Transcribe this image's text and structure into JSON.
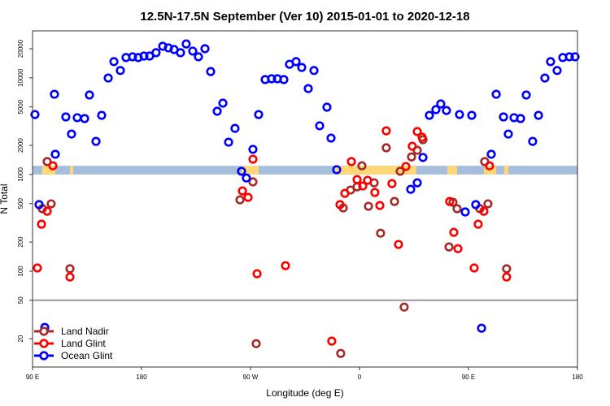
{
  "chart_data": {
    "type": "scatter",
    "title": "12.5N-17.5N September (Ver 10)   2015-01-01 to 2020-12-18",
    "xlabel": "Longitude (deg E)",
    "ylabel": "N Total",
    "xlim": [
      90,
      540
    ],
    "ylim": [
      10.2,
      30600
    ],
    "yscale": "log",
    "x_note": "longitude unwrapped in degrees east starting at 90E",
    "xticks": [
      {
        "value": 90,
        "label": "90 E"
      },
      {
        "value": 180,
        "label": "180"
      },
      {
        "value": 270,
        "label": "90 W"
      },
      {
        "value": 360,
        "label": "0"
      },
      {
        "value": 450,
        "label": "90 E"
      },
      {
        "value": 540,
        "label": "180"
      }
    ],
    "yticks": [
      {
        "value": 20,
        "label": "20"
      },
      {
        "value": 50,
        "label": "50"
      },
      {
        "value": 100,
        "label": "100"
      },
      {
        "value": 200,
        "label": "200"
      },
      {
        "value": 500,
        "label": "500"
      },
      {
        "value": 1000,
        "label": "1000"
      },
      {
        "value": 2000,
        "label": "2000"
      },
      {
        "value": 5000,
        "label": "5000"
      },
      {
        "value": 10000,
        "label": "10000"
      },
      {
        "value": 20000,
        "label": "20000"
      }
    ],
    "reference_line": 50,
    "land_mask_band": {
      "y_range": [
        1000,
        1230
      ],
      "ocean_color": "#a6bddb",
      "land_color": "#fed876",
      "land_segments_lon": [
        [
          98,
          108.8
        ],
        [
          121,
          123.6
        ],
        [
          262.6,
          276.7
        ],
        [
          339.8,
          407
        ],
        [
          432.5,
          440.6
        ],
        [
          462.7,
          472.8
        ],
        [
          479.5,
          482.9
        ]
      ]
    },
    "legend": {
      "placement": "bottom-left"
    },
    "series": [
      {
        "name": "Land Nadir",
        "color": "#a52a2a",
        "points": [
          [
            98.1,
            443
          ],
          [
            102.1,
            1360
          ],
          [
            105.4,
            497
          ],
          [
            120.9,
            106
          ],
          [
            261.3,
            547
          ],
          [
            272.0,
            838
          ],
          [
            274.7,
            17.8
          ],
          [
            344.5,
            14.1
          ],
          [
            346.6,
            451
          ],
          [
            352.6,
            690
          ],
          [
            358.0,
            745
          ],
          [
            362.0,
            1230
          ],
          [
            367.4,
            469
          ],
          [
            372.1,
            820
          ],
          [
            377.4,
            247
          ],
          [
            382.1,
            1890
          ],
          [
            388.9,
            526
          ],
          [
            393.6,
            1080
          ],
          [
            396.9,
            42.5
          ],
          [
            403.0,
            1520
          ],
          [
            407.7,
            1780
          ],
          [
            412.4,
            2290
          ],
          [
            433.9,
            178
          ],
          [
            437.2,
            516
          ],
          [
            440.6,
            443
          ],
          [
            459.4,
            443
          ],
          [
            463.4,
            1360
          ],
          [
            466.1,
            497
          ],
          [
            481.5,
            106
          ]
        ]
      },
      {
        "name": "Land Glint",
        "color": "#ff0000",
        "points": [
          [
            94.0,
            108
          ],
          [
            97.4,
            306
          ],
          [
            102.1,
            417
          ],
          [
            106.8,
            1230
          ],
          [
            120.9,
            87
          ],
          [
            263.3,
            676
          ],
          [
            268.0,
            580
          ],
          [
            272.0,
            1440
          ],
          [
            275.4,
            94
          ],
          [
            298.9,
            114
          ],
          [
            337.1,
            18.9
          ],
          [
            343.9,
            488
          ],
          [
            347.9,
            638
          ],
          [
            353.3,
            1360
          ],
          [
            358.0,
            887
          ],
          [
            362.7,
            760
          ],
          [
            366.7,
            871
          ],
          [
            372.7,
            652
          ],
          [
            376.8,
            478
          ],
          [
            382.1,
            2830
          ],
          [
            386.8,
            805
          ],
          [
            392.2,
            189
          ],
          [
            398.3,
            1210
          ],
          [
            403.6,
            1960
          ],
          [
            407.7,
            2780
          ],
          [
            411.7,
            2430
          ],
          [
            434.5,
            526
          ],
          [
            437.9,
            252
          ],
          [
            441.3,
            171
          ],
          [
            454.7,
            108
          ],
          [
            458.0,
            306
          ],
          [
            462.7,
            417
          ],
          [
            467.4,
            1230
          ],
          [
            481.5,
            87
          ]
        ]
      },
      {
        "name": "Ocean Glint",
        "color": "#0000ff",
        "points": [
          [
            92.0,
            4170
          ],
          [
            95.4,
            488
          ],
          [
            100.1,
            26.2
          ],
          [
            108.1,
            6760
          ],
          [
            108.8,
            1620
          ],
          [
            117.5,
            3940
          ],
          [
            122.2,
            2620
          ],
          [
            126.9,
            3870
          ],
          [
            133.0,
            3790
          ],
          [
            137.0,
            6640
          ],
          [
            142.4,
            2200
          ],
          [
            147.1,
            4090
          ],
          [
            152.5,
            9950
          ],
          [
            157.2,
            14700
          ],
          [
            162.5,
            11900
          ],
          [
            167.2,
            16200
          ],
          [
            172.6,
            16500
          ],
          [
            177.3,
            16200
          ],
          [
            182.0,
            16800
          ],
          [
            186.7,
            16800
          ],
          [
            192.0,
            18200
          ],
          [
            197.5,
            21200
          ],
          [
            202.2,
            20400
          ],
          [
            206.9,
            19600
          ],
          [
            212.2,
            18200
          ],
          [
            216.9,
            22400
          ],
          [
            222.3,
            18900
          ],
          [
            227.0,
            16500
          ],
          [
            232.4,
            20000
          ],
          [
            237.1,
            11600
          ],
          [
            242.5,
            4510
          ],
          [
            247.2,
            5470
          ],
          [
            251.9,
            2160
          ],
          [
            257.2,
            3000
          ],
          [
            262.6,
            1080
          ],
          [
            266.6,
            920
          ],
          [
            272.0,
            1820
          ],
          [
            276.7,
            4170
          ],
          [
            282.1,
            9590
          ],
          [
            287.4,
            9780
          ],
          [
            292.2,
            9780
          ],
          [
            297.5,
            9590
          ],
          [
            302.2,
            13800
          ],
          [
            307.6,
            14700
          ],
          [
            312.3,
            12800
          ],
          [
            317.7,
            7740
          ],
          [
            322.4,
            11900
          ],
          [
            327.1,
            3190
          ],
          [
            333.1,
            4970
          ],
          [
            336.5,
            2380
          ],
          [
            341.2,
            1120
          ],
          [
            402.3,
            703
          ],
          [
            407.7,
            820
          ],
          [
            412.4,
            1500
          ],
          [
            417.7,
            4090
          ],
          [
            423.1,
            4690
          ],
          [
            427.1,
            5370
          ],
          [
            431.8,
            4590
          ],
          [
            442.6,
            4170
          ],
          [
            447.3,
            410
          ],
          [
            452.7,
            4090
          ],
          [
            456.0,
            488
          ],
          [
            460.8,
            25.7
          ],
          [
            468.8,
            1620
          ],
          [
            472.9,
            6760
          ],
          [
            478.9,
            3940
          ],
          [
            482.9,
            2620
          ],
          [
            487.6,
            3870
          ],
          [
            493.0,
            3790
          ],
          [
            497.7,
            6640
          ],
          [
            503.0,
            2200
          ],
          [
            507.8,
            4090
          ],
          [
            513.1,
            9950
          ],
          [
            517.8,
            14700
          ],
          [
            523.2,
            11900
          ],
          [
            527.9,
            16200
          ],
          [
            533.3,
            16500
          ],
          [
            538.0,
            16500
          ]
        ]
      }
    ]
  }
}
